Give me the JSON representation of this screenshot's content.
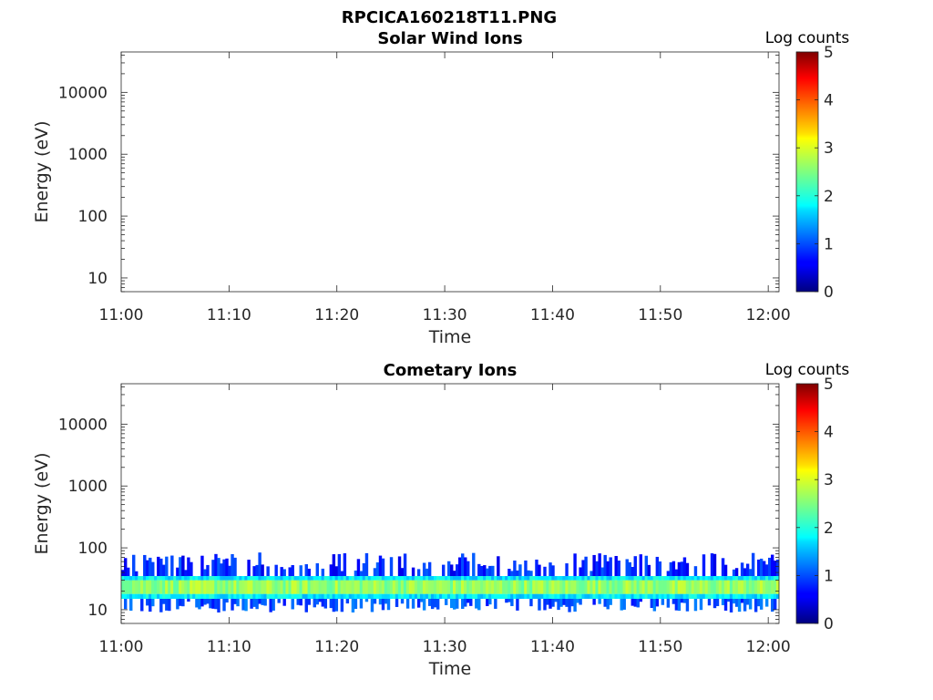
{
  "figure": {
    "title": "RPCICA160218T11.PNG"
  },
  "chart_data": [
    {
      "type": "heatmap",
      "title": "Solar Wind Ions",
      "xlabel": "Time",
      "ylabel": "Energy (eV)",
      "x_ticks": [
        "11:00",
        "11:10",
        "11:20",
        "11:30",
        "11:40",
        "11:50",
        "12:00"
      ],
      "xlim": [
        "11:00",
        "12:01"
      ],
      "y_scale": "log",
      "y_ticks": [
        10,
        100,
        1000,
        10000
      ],
      "y_tick_labels": [
        "10",
        "100",
        "1000",
        "10000"
      ],
      "ylim": [
        6,
        45000
      ],
      "colorbar": {
        "label": "Log counts",
        "range": [
          0,
          5
        ],
        "ticks": [
          "0",
          "1",
          "2",
          "3",
          "4",
          "5"
        ],
        "colormap": "jet"
      },
      "grid": false,
      "bands": []
    },
    {
      "type": "heatmap",
      "title": "Cometary Ions",
      "xlabel": "Time",
      "ylabel": "Energy (eV)",
      "x_ticks": [
        "11:00",
        "11:10",
        "11:20",
        "11:30",
        "11:40",
        "11:50",
        "12:00"
      ],
      "xlim": [
        "11:00",
        "12:01"
      ],
      "y_scale": "log",
      "y_ticks": [
        10,
        100,
        1000,
        10000
      ],
      "y_tick_labels": [
        "10",
        "100",
        "1000",
        "10000"
      ],
      "ylim": [
        6,
        45000
      ],
      "colorbar": {
        "label": "Log counts",
        "range": [
          0,
          5
        ],
        "ticks": [
          "0",
          "1",
          "2",
          "3",
          "4",
          "5"
        ],
        "colormap": "jet"
      },
      "grid": false,
      "bands": [
        {
          "energy_range_eV": [
            9,
            15
          ],
          "log_counts": 1.0
        },
        {
          "energy_range_eV": [
            15,
            18
          ],
          "log_counts": 1.8
        },
        {
          "energy_range_eV": [
            18,
            30
          ],
          "log_counts": 2.6
        },
        {
          "energy_range_eV": [
            30,
            35
          ],
          "log_counts": 1.8
        },
        {
          "energy_range_eV": [
            35,
            85
          ],
          "log_counts": 0.8
        }
      ]
    }
  ]
}
